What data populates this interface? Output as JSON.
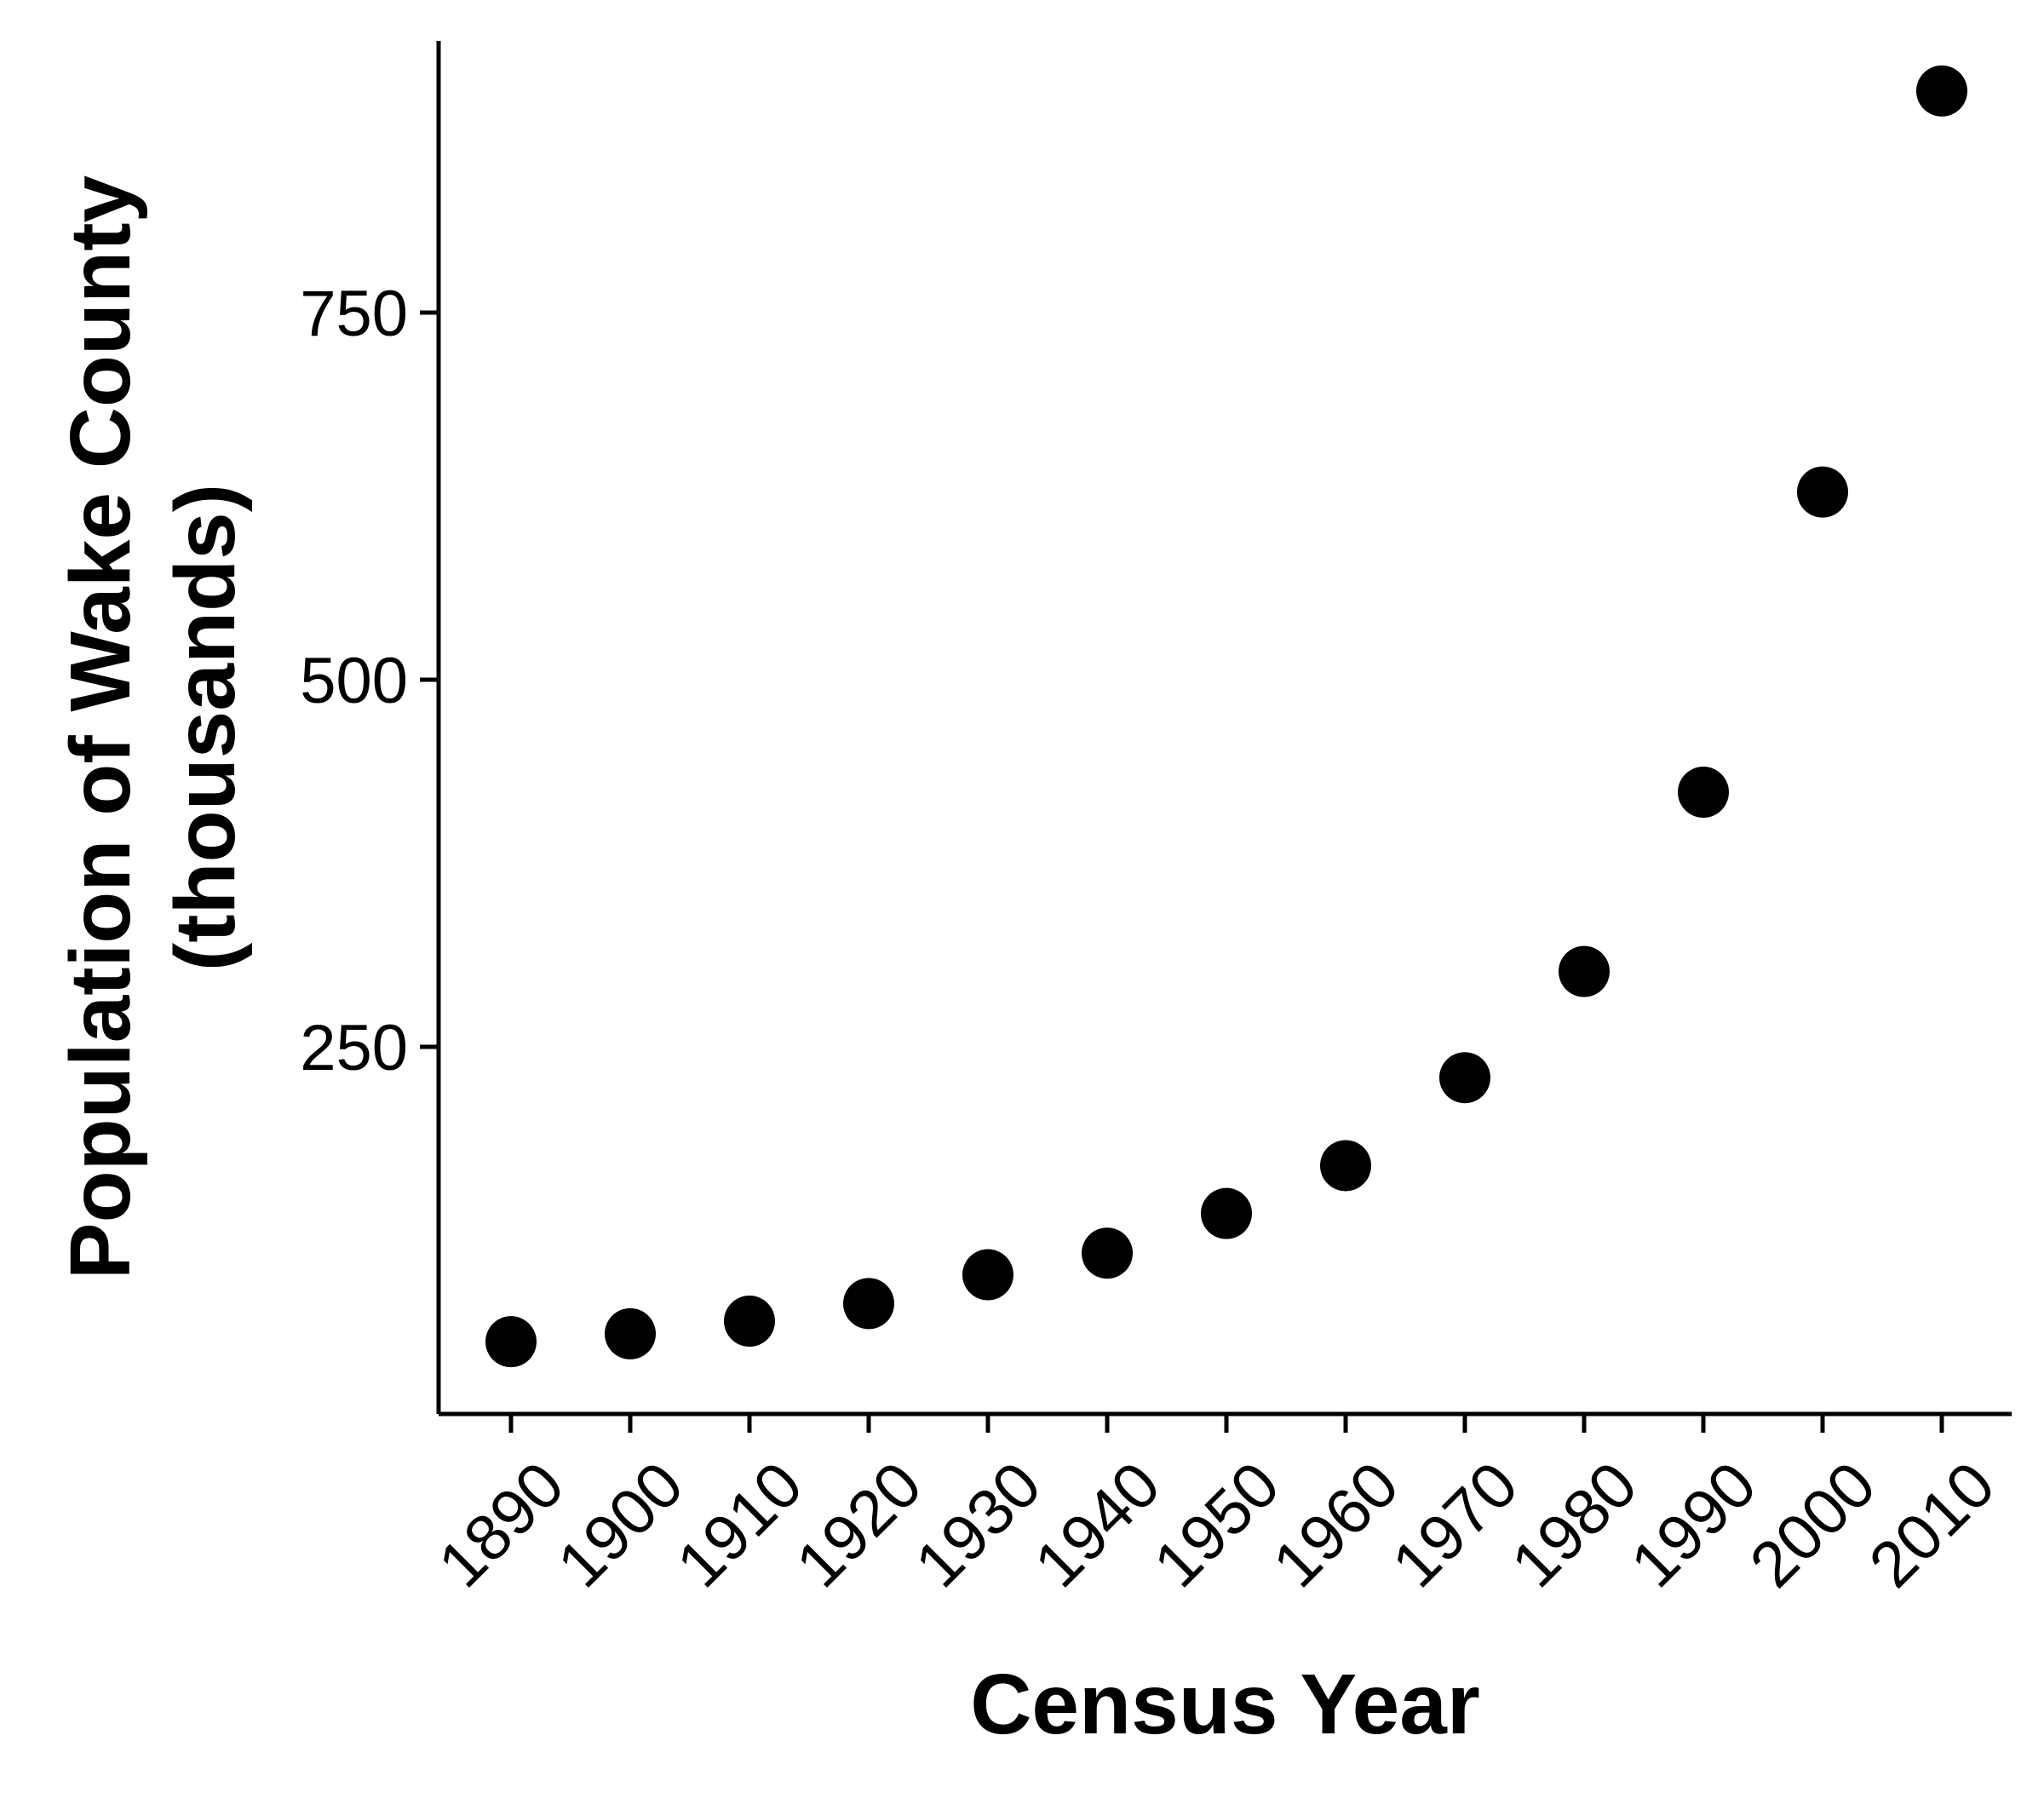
{
  "chart_data": {
    "type": "scatter",
    "title": "",
    "xlabel": "Census Year",
    "ylabel_lines": [
      "Population of Wake County",
      "(thousands)"
    ],
    "x": [
      "1890",
      "1900",
      "1910",
      "1920",
      "1930",
      "1940",
      "1950",
      "1960",
      "1970",
      "1980",
      "1990",
      "2000",
      "2010"
    ],
    "y": [
      49.2,
      54.6,
      63.2,
      75.2,
      94.8,
      109.5,
      136.5,
      169.1,
      229.0,
      301.3,
      423.4,
      627.8,
      900.9
    ],
    "ylim": [
      0,
      935
    ],
    "y_ticks": [
      250,
      500,
      750
    ],
    "x_tick_rotation": 45,
    "grid": false,
    "legend": "none",
    "point_color": "#000000",
    "axis_color": "#000000"
  }
}
